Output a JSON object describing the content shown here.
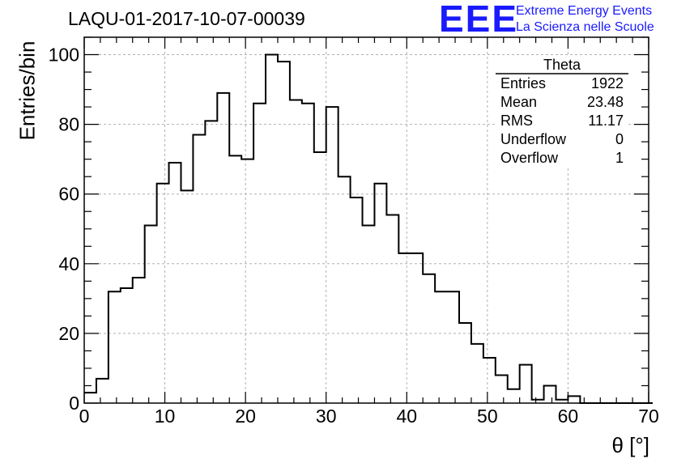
{
  "title": "LAQU-01-2017-10-07-00039",
  "logo": {
    "letters": "EEE",
    "line1": "Extreme Energy Events",
    "line2": "La Scienza nelle Scuole",
    "color": "#1a1aff"
  },
  "stats": {
    "title": "Theta",
    "rows": [
      {
        "key": "Entries",
        "value": "1922"
      },
      {
        "key": "Mean",
        "value": "23.48"
      },
      {
        "key": "RMS",
        "value": "11.17"
      },
      {
        "key": "Underflow",
        "value": "0"
      },
      {
        "key": "Overflow",
        "value": "1"
      }
    ]
  },
  "chart_data": {
    "type": "bar",
    "subtype": "step-histogram",
    "title": "LAQU-01-2017-10-07-00039",
    "xlabel": "θ [°]",
    "ylabel": "Entries/bin",
    "xlim": [
      0,
      70
    ],
    "ylim": [
      0,
      105
    ],
    "grid": true,
    "x_ticks": [
      "0",
      "10",
      "20",
      "30",
      "40",
      "50",
      "60",
      "70"
    ],
    "y_ticks": [
      "0",
      "20",
      "40",
      "60",
      "80",
      "100"
    ],
    "bin_width": 1.5,
    "bin_edges_start": 0,
    "values": [
      3,
      7,
      32,
      33,
      36,
      51,
      63,
      69,
      61,
      77,
      81,
      89,
      71,
      70,
      86,
      100,
      98,
      87,
      86,
      72,
      85,
      65,
      59,
      51,
      63,
      54,
      43,
      43,
      37,
      32,
      32,
      23,
      17,
      13,
      8,
      4,
      11,
      1,
      5,
      1,
      2,
      0,
      0,
      0,
      0,
      0,
      0
    ],
    "line_color": "#000000"
  }
}
